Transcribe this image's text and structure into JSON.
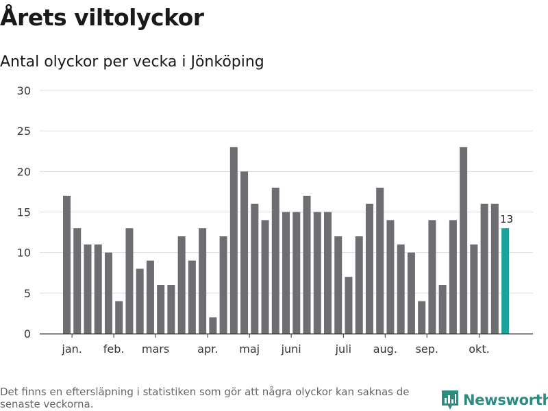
{
  "header": {
    "title": "Årets viltolyckor",
    "subtitle": "Antal olyckor per vecka i Jönköping"
  },
  "footer": {
    "note": "Det finns en eftersläpning i statistiken som gör att några olyckor kan saknas de senaste veckorna.",
    "brand": "Newsworthy",
    "brand_icon": "newsworthy-logo-icon"
  },
  "colors": {
    "bar": "#6e6d72",
    "highlight": "#1aa39a",
    "grid": "#dddddd",
    "axis": "#333333"
  },
  "chart_data": {
    "type": "bar",
    "title": "Årets viltolyckor",
    "subtitle": "Antal olyckor per vecka i Jönköping",
    "xlabel": "",
    "ylabel": "",
    "ylim": [
      0,
      30
    ],
    "yticks": [
      0,
      5,
      10,
      15,
      20,
      25,
      30
    ],
    "grid": true,
    "weeks": [
      1,
      2,
      3,
      4,
      5,
      6,
      7,
      8,
      9,
      10,
      11,
      12,
      13,
      14,
      15,
      16,
      17,
      18,
      19,
      20,
      21,
      22,
      23,
      24,
      25,
      26,
      27,
      28,
      29,
      30,
      31,
      32,
      33,
      34,
      35,
      36,
      37,
      38,
      39,
      40,
      41,
      42,
      43
    ],
    "values": [
      17,
      13,
      11,
      11,
      10,
      4,
      13,
      8,
      9,
      6,
      6,
      12,
      9,
      13,
      2,
      12,
      23,
      20,
      16,
      14,
      18,
      15,
      15,
      17,
      15,
      15,
      12,
      7,
      12,
      16,
      18,
      14,
      11,
      10,
      4,
      14,
      6,
      14,
      23,
      11,
      16,
      16,
      13
    ],
    "highlight_index": 42,
    "data_labels": [
      {
        "index": 42,
        "text": "13"
      }
    ],
    "month_ticks": [
      {
        "label": "jan.",
        "week": 1.5
      },
      {
        "label": "feb.",
        "week": 5.5
      },
      {
        "label": "mars",
        "week": 9.5
      },
      {
        "label": "apr.",
        "week": 14.5
      },
      {
        "label": "maj",
        "week": 18.5
      },
      {
        "label": "juni",
        "week": 22.5
      },
      {
        "label": "juli",
        "week": 27.5
      },
      {
        "label": "aug.",
        "week": 31.5
      },
      {
        "label": "sep.",
        "week": 35.5
      },
      {
        "label": "okt.",
        "week": 40.5
      }
    ]
  }
}
